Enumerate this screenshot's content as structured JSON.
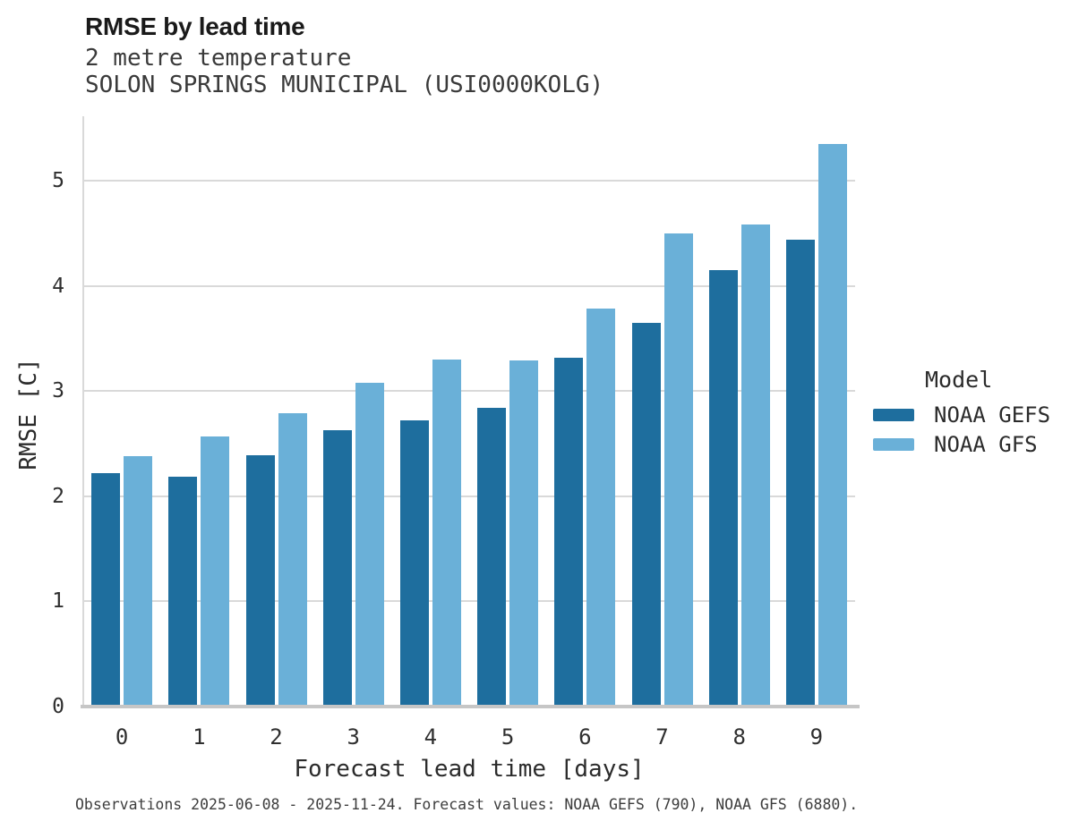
{
  "header": {
    "title": "RMSE by lead time",
    "subtitle_line1": "2 metre temperature",
    "subtitle_line2": "SOLON SPRINGS MUNICIPAL (USI0000KOLG)"
  },
  "footer": {
    "caption": "Observations 2025-06-08 - 2025-11-24. Forecast values: NOAA GEFS (790), NOAA GFS (6880)."
  },
  "colors": {
    "gefs_bar": "#1e6e9e",
    "gfs_bar": "#6ab0d8",
    "gridline": "#d9d9d9",
    "baseline": "#c6c6c6"
  },
  "chart_data": {
    "type": "bar",
    "title": "RMSE by lead time",
    "subtitle": [
      "2 metre temperature",
      "SOLON SPRINGS MUNICIPAL (USI0000KOLG)"
    ],
    "xlabel": "Forecast lead time [days]",
    "ylabel": "RMSE [C]",
    "categories": [
      "0",
      "1",
      "2",
      "3",
      "4",
      "5",
      "6",
      "7",
      "8",
      "9"
    ],
    "series": [
      {
        "name": "NOAA GEFS",
        "color": "#1e6e9e",
        "values": [
          2.2,
          2.17,
          2.37,
          2.61,
          2.7,
          2.82,
          3.3,
          3.63,
          4.13,
          4.42
        ]
      },
      {
        "name": "NOAA GFS",
        "color": "#6ab0d8",
        "values": [
          2.36,
          2.55,
          2.77,
          3.06,
          3.28,
          3.27,
          3.77,
          4.48,
          4.57,
          5.33
        ]
      }
    ],
    "ylim": [
      0,
      5.61
    ],
    "yticks": [
      0,
      1,
      2,
      3,
      4,
      5
    ],
    "grid": "horizontal",
    "legend_title": "Model",
    "legend_position": "right",
    "caption": "Observations 2025-06-08 - 2025-11-24. Forecast values: NOAA GEFS (790), NOAA GFS (6880)."
  }
}
